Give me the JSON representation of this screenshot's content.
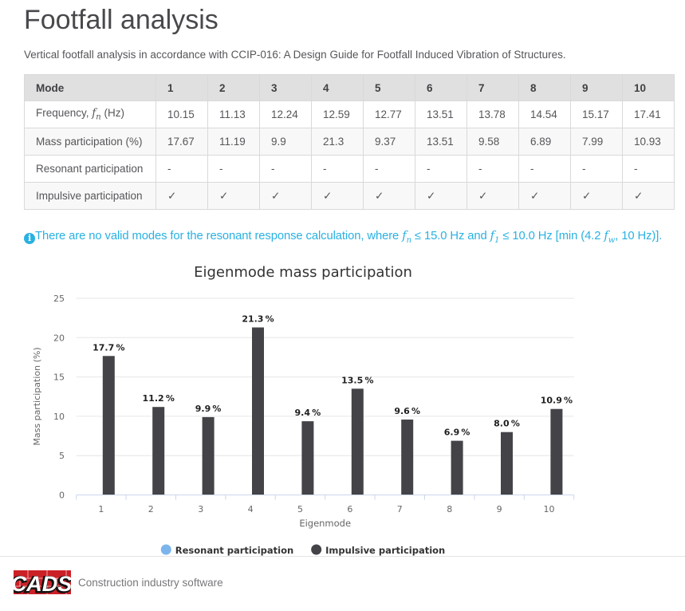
{
  "header": {
    "title": "Footfall analysis",
    "subtitle": "Vertical footfall analysis in accordance with CCIP-016: A Design Guide for Footfall Induced Vibration of Structures."
  },
  "table": {
    "header": {
      "label": "Mode",
      "columns": [
        "1",
        "2",
        "3",
        "4",
        "5",
        "6",
        "7",
        "8",
        "9",
        "10"
      ]
    },
    "rows": [
      {
        "label_prefix": "Frequency, ",
        "math_symbol": "f",
        "math_sub": "n",
        "label_suffix": " (Hz)",
        "values": [
          "10.15",
          "11.13",
          "12.24",
          "12.59",
          "12.77",
          "13.51",
          "13.78",
          "14.54",
          "15.17",
          "17.41"
        ]
      },
      {
        "label": "Mass participation (%)",
        "values": [
          "17.67",
          "11.19",
          "9.9",
          "21.3",
          "9.37",
          "13.51",
          "9.58",
          "6.89",
          "7.99",
          "10.93"
        ]
      },
      {
        "label": "Resonant participation",
        "values": [
          "-",
          "-",
          "-",
          "-",
          "-",
          "-",
          "-",
          "-",
          "-",
          "-"
        ]
      },
      {
        "label": "Impulsive participation",
        "values": [
          "✓",
          "✓",
          "✓",
          "✓",
          "✓",
          "✓",
          "✓",
          "✓",
          "✓",
          "✓"
        ]
      }
    ]
  },
  "info": {
    "icon": "info-icon",
    "icon_glyph": "i",
    "part1": "There are no valid modes for the resonant response calculation, where ",
    "math1_symbol": "f",
    "math1_sub": "n",
    "part2": " ≤ 15.0 Hz and ",
    "math2_symbol": "f",
    "math2_sub": "1",
    "part3": " ≤ 10.0 Hz [min (4.2 ",
    "math3_symbol": "f",
    "math3_sub": "w",
    "part4": ", 10 Hz)].",
    "color": "#29b1e2"
  },
  "chart_data": {
    "type": "bar",
    "title": "Eigenmode mass participation",
    "xlabel": "Eigenmode",
    "ylabel": "Mass participation (%)",
    "categories": [
      "1",
      "2",
      "3",
      "4",
      "5",
      "6",
      "7",
      "8",
      "9",
      "10"
    ],
    "series": [
      {
        "name": "Resonant participation",
        "color": "#7cb5ec",
        "values": [
          null,
          null,
          null,
          null,
          null,
          null,
          null,
          null,
          null,
          null
        ]
      },
      {
        "name": "Impulsive participation",
        "color": "#434348",
        "values": [
          17.67,
          11.19,
          9.9,
          21.3,
          9.37,
          13.51,
          9.58,
          6.89,
          7.99,
          10.93
        ]
      }
    ],
    "point_labels": [
      "17.7 %",
      "11.2 %",
      "9.9 %",
      "21.3 %",
      "9.4 %",
      "13.5 %",
      "9.6 %",
      "6.9 %",
      "8.0 %",
      "10.9 %"
    ],
    "ylim": [
      0,
      25
    ],
    "yticks": [
      0,
      5,
      10,
      15,
      20,
      25
    ],
    "grid": true,
    "legend_position": "bottom",
    "axis_line_color": "#ccd6eb",
    "grid_color": "#e6e6e6",
    "label_color": "#666666",
    "title_color": "#333333"
  },
  "footer": {
    "logo_text": "CADS",
    "logo_color": "#cc2027",
    "tagline": "Construction industry software"
  }
}
